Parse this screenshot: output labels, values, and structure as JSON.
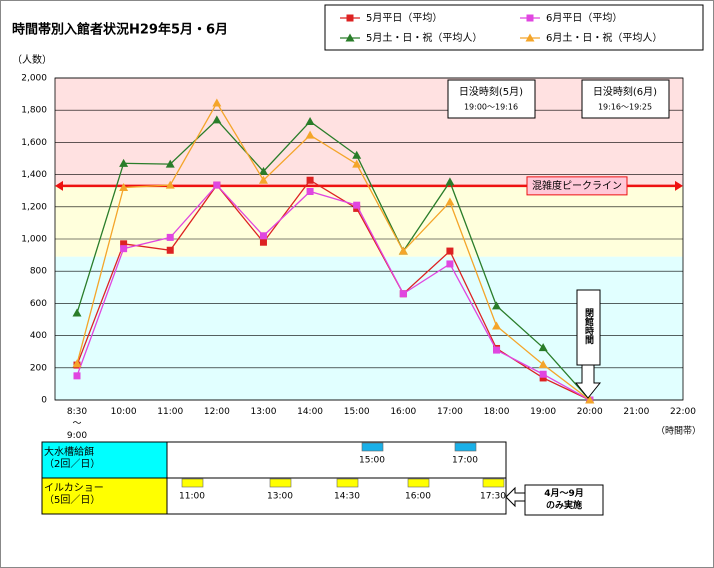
{
  "chart_data": {
    "type": "line",
    "title": "時間帯別入館者状況H29年5月・6月",
    "y_label": "（人数）",
    "x_label": "（時間帯）",
    "categories": [
      "8:30\n～\n9:00",
      "10:00",
      "11:00",
      "12:00",
      "13:00",
      "14:00",
      "15:00",
      "16:00",
      "17:00",
      "18:00",
      "19:00",
      "20:00",
      "21:00",
      "22:00"
    ],
    "series": [
      {
        "name": "5月平日（平均）",
        "color": "#dd2222",
        "marker": "square",
        "values": [
          217,
          970,
          930,
          1335,
          980,
          1365,
          1190,
          660,
          925,
          320,
          137,
          0,
          null,
          null
        ]
      },
      {
        "name": "6月平日（平均）",
        "color": "#e046e0",
        "marker": "square",
        "values": [
          150,
          940,
          1010,
          1335,
          1020,
          1295,
          1210,
          660,
          845,
          310,
          160,
          0,
          null,
          null
        ]
      },
      {
        "name": "5月土・日・祝（平均人）",
        "color": "#2a7d2a",
        "marker": "triangle",
        "values": [
          540,
          1470,
          1465,
          1740,
          1420,
          1730,
          1520,
          925,
          1355,
          585,
          325,
          0,
          null,
          null
        ]
      },
      {
        "name": "6月土・日・祝（平均人）",
        "color": "#f4a52a",
        "marker": "triangle",
        "values": [
          225,
          1320,
          1335,
          1845,
          1365,
          1645,
          1465,
          925,
          1230,
          460,
          220,
          0,
          null,
          null
        ]
      }
    ],
    "ylim": [
      0,
      2000
    ],
    "yticks": [
      0,
      {
        "value": 200,
        "label": "200"
      },
      400,
      600,
      800,
      {
        "value": 1000,
        "label": "1,000"
      },
      {
        "value": 1200,
        "label": "1,200"
      },
      {
        "value": 1400,
        "label": "1,400"
      },
      {
        "value": 1600,
        "label": "1,600"
      },
      {
        "value": 1800,
        "label": "1,800"
      },
      {
        "value": 2000,
        "label": "2,000"
      }
    ],
    "grid": true,
    "bands": [
      {
        "range": [
          1330,
          2000
        ],
        "color": "#ffe1e1"
      },
      {
        "range": [
          890,
          1330
        ],
        "color": "#ffffdc"
      },
      {
        "range": [
          0,
          890
        ],
        "color": "#e1ffff"
      }
    ],
    "peak_line": {
      "value": 1330,
      "label": "混雑度ピークライン",
      "color": "#ee1111"
    },
    "sunset": [
      {
        "title": "日没時刻(5月)",
        "text": "19:00～19:16"
      },
      {
        "title": "日没時刻(6月)",
        "text": "19:16～19:25"
      }
    ],
    "closing": {
      "label": "閉館時間"
    }
  },
  "schedule": {
    "rows": [
      {
        "label": "大水槽給餌\n（2回／日）",
        "color": "#00ffff",
        "box_color": "#1ab0e8",
        "times": [
          "15:00",
          "17:00"
        ]
      },
      {
        "label": "イルカショー\n（5回／日）",
        "color": "#ffff00",
        "box_color": "#ffff00",
        "times": [
          "11:00",
          "13:00",
          "14:30",
          "16:00",
          "17:30"
        ]
      }
    ],
    "note": "4月～9月\nのみ実施"
  }
}
